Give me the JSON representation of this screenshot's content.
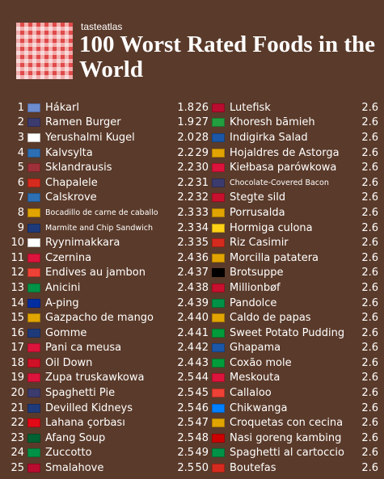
{
  "brand": "tasteatlas",
  "title": "100 Worst Rated Foods in the World",
  "left": [
    {
      "rank": "1",
      "flag": "#6d8ccf",
      "name": "Hákarl",
      "score": "1.8"
    },
    {
      "rank": "2",
      "flag": "#3c3b6e",
      "name": "Ramen Burger",
      "score": "1.9"
    },
    {
      "rank": "3",
      "flag": "#ffffff",
      "name": "Yerushalmi Kugel",
      "score": "2.0"
    },
    {
      "rank": "4",
      "flag": "#2d6fb3",
      "name": "Kalvsylta",
      "score": "2.2"
    },
    {
      "rank": "5",
      "flag": "#9e3039",
      "name": "Sklandrausis",
      "score": "2.2"
    },
    {
      "rank": "6",
      "flag": "#d52b1e",
      "name": "Chapalele",
      "score": "2.2"
    },
    {
      "rank": "7",
      "flag": "#2d6fb3",
      "name": "Calskrove",
      "score": "2.2"
    },
    {
      "rank": "8",
      "flag": "#e1a400",
      "name": "Bocadillo de carne de caballo",
      "score": "2.3",
      "small": true
    },
    {
      "rank": "9",
      "flag": "#1f3a7a",
      "name": "Marmite and Chip Sandwich",
      "score": "2.3",
      "small": true
    },
    {
      "rank": "10",
      "flag": "#ffffff",
      "name": "Ryynimakkara",
      "score": "2.3"
    },
    {
      "rank": "11",
      "flag": "#dc143c",
      "name": "Czernina",
      "score": "2.4"
    },
    {
      "rank": "12",
      "flag": "#ef4135",
      "name": "Endives au jambon",
      "score": "2.4"
    },
    {
      "rank": "13",
      "flag": "#009246",
      "name": "Anicini",
      "score": "2.4"
    },
    {
      "rank": "14",
      "flag": "#032ea1",
      "name": "A-ping",
      "score": "2.4"
    },
    {
      "rank": "15",
      "flag": "#e1a400",
      "name": "Gazpacho de mango",
      "score": "2.4"
    },
    {
      "rank": "16",
      "flag": "#1f3a7a",
      "name": "Gomme",
      "score": "2.4"
    },
    {
      "rank": "17",
      "flag": "#dc143c",
      "name": "Pani ca meusa",
      "score": "2.4"
    },
    {
      "rank": "18",
      "flag": "#ce1126",
      "name": "Oil Down",
      "score": "2.4"
    },
    {
      "rank": "19",
      "flag": "#dc143c",
      "name": "Zupa truskawkowa",
      "score": "2.5"
    },
    {
      "rank": "20",
      "flag": "#3c3b6e",
      "name": "Spaghetti Pie",
      "score": "2.5"
    },
    {
      "rank": "21",
      "flag": "#1f3a7a",
      "name": "Devilled Kidneys",
      "score": "2.5"
    },
    {
      "rank": "22",
      "flag": "#e30a17",
      "name": "Lahana çorbası",
      "score": "2.5"
    },
    {
      "rank": "23",
      "flag": "#006233",
      "name": "Afang Soup",
      "score": "2.5"
    },
    {
      "rank": "24",
      "flag": "#009246",
      "name": "Zuccotto",
      "score": "2.5"
    },
    {
      "rank": "25",
      "flag": "#ba0c2f",
      "name": "Smalahove",
      "score": "2.5"
    }
  ],
  "right": [
    {
      "rank": "26",
      "flag": "#ba0c2f",
      "name": "Lutefisk",
      "score": "2.6"
    },
    {
      "rank": "27",
      "flag": "#239f40",
      "name": "Khoresh bāmieh",
      "score": "2.6"
    },
    {
      "rank": "28",
      "flag": "#1c57a7",
      "name": "Indigirka Salad",
      "score": "2.6"
    },
    {
      "rank": "29",
      "flag": "#e1a400",
      "name": "Hojaldres de Astorga",
      "score": "2.6"
    },
    {
      "rank": "30",
      "flag": "#dc143c",
      "name": "Kiełbasa parówkowa",
      "score": "2.6"
    },
    {
      "rank": "31",
      "flag": "#3c3b6e",
      "name": "Chocolate-Covered Bacon",
      "score": "2.6",
      "small": true
    },
    {
      "rank": "32",
      "flag": "#c8102e",
      "name": "Stegte sild",
      "score": "2.6"
    },
    {
      "rank": "33",
      "flag": "#e1a400",
      "name": "Porrusalda",
      "score": "2.6"
    },
    {
      "rank": "34",
      "flag": "#fcd116",
      "name": "Hormiga culona",
      "score": "2.6"
    },
    {
      "rank": "35",
      "flag": "#d52b1e",
      "name": "Riz Casimir",
      "score": "2.6"
    },
    {
      "rank": "36",
      "flag": "#e1a400",
      "name": "Morcilla patatera",
      "score": "2.6"
    },
    {
      "rank": "37",
      "flag": "#000000",
      "name": "Brotsuppe",
      "score": "2.6"
    },
    {
      "rank": "38",
      "flag": "#c8102e",
      "name": "Millionbøf",
      "score": "2.6"
    },
    {
      "rank": "39",
      "flag": "#009246",
      "name": "Pandolce",
      "score": "2.6"
    },
    {
      "rank": "40",
      "flag": "#e1a400",
      "name": "Caldo de papas",
      "score": "2.6"
    },
    {
      "rank": "41",
      "flag": "#009b3a",
      "name": "Sweet Potato Pudding",
      "score": "2.6"
    },
    {
      "rank": "42",
      "flag": "#1c57a7",
      "name": "Ghapama",
      "score": "2.6"
    },
    {
      "rank": "43",
      "flag": "#009c3b",
      "name": "Coxão mole",
      "score": "2.6"
    },
    {
      "rank": "44",
      "flag": "#dc143c",
      "name": "Meskouta",
      "score": "2.6"
    },
    {
      "rank": "45",
      "flag": "#ef4135",
      "name": "Callaloo",
      "score": "2.6"
    },
    {
      "rank": "46",
      "flag": "#007fff",
      "name": "Chikwanga",
      "score": "2.6"
    },
    {
      "rank": "47",
      "flag": "#e1a400",
      "name": "Croquetas con cecina",
      "score": "2.6"
    },
    {
      "rank": "48",
      "flag": "#cc0001",
      "name": "Nasi goreng kambing",
      "score": "2.6"
    },
    {
      "rank": "49",
      "flag": "#009246",
      "name": "Spaghetti al cartoccio",
      "score": "2.6"
    },
    {
      "rank": "50",
      "flag": "#d52b1e",
      "name": "Boutefas",
      "score": "2.6"
    }
  ]
}
